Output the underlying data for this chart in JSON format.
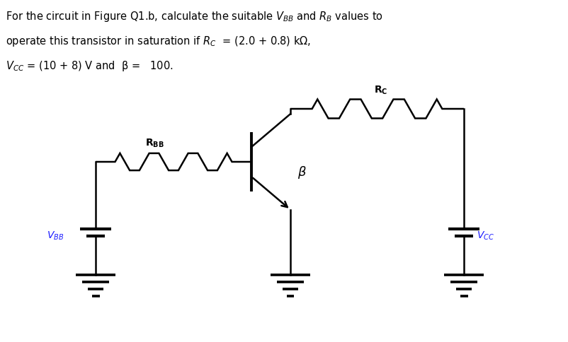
{
  "background_color": "#ffffff",
  "text_color": "#000000",
  "label_color": "#1a1aff",
  "circuit_color": "#000000",
  "title_lines": [
    "For the circuit in Figure Q1.b, calculate the suitable $V_{BB}$ and $R_B$ values to",
    "operate this transistor in saturation if $R_C$  = (2.0 + 0.8) kΩ,",
    "$V_{CC}$ = (10 + 8) V and  β =   100."
  ],
  "figsize": [
    8.03,
    4.84
  ],
  "dpi": 100,
  "lw": 1.8
}
